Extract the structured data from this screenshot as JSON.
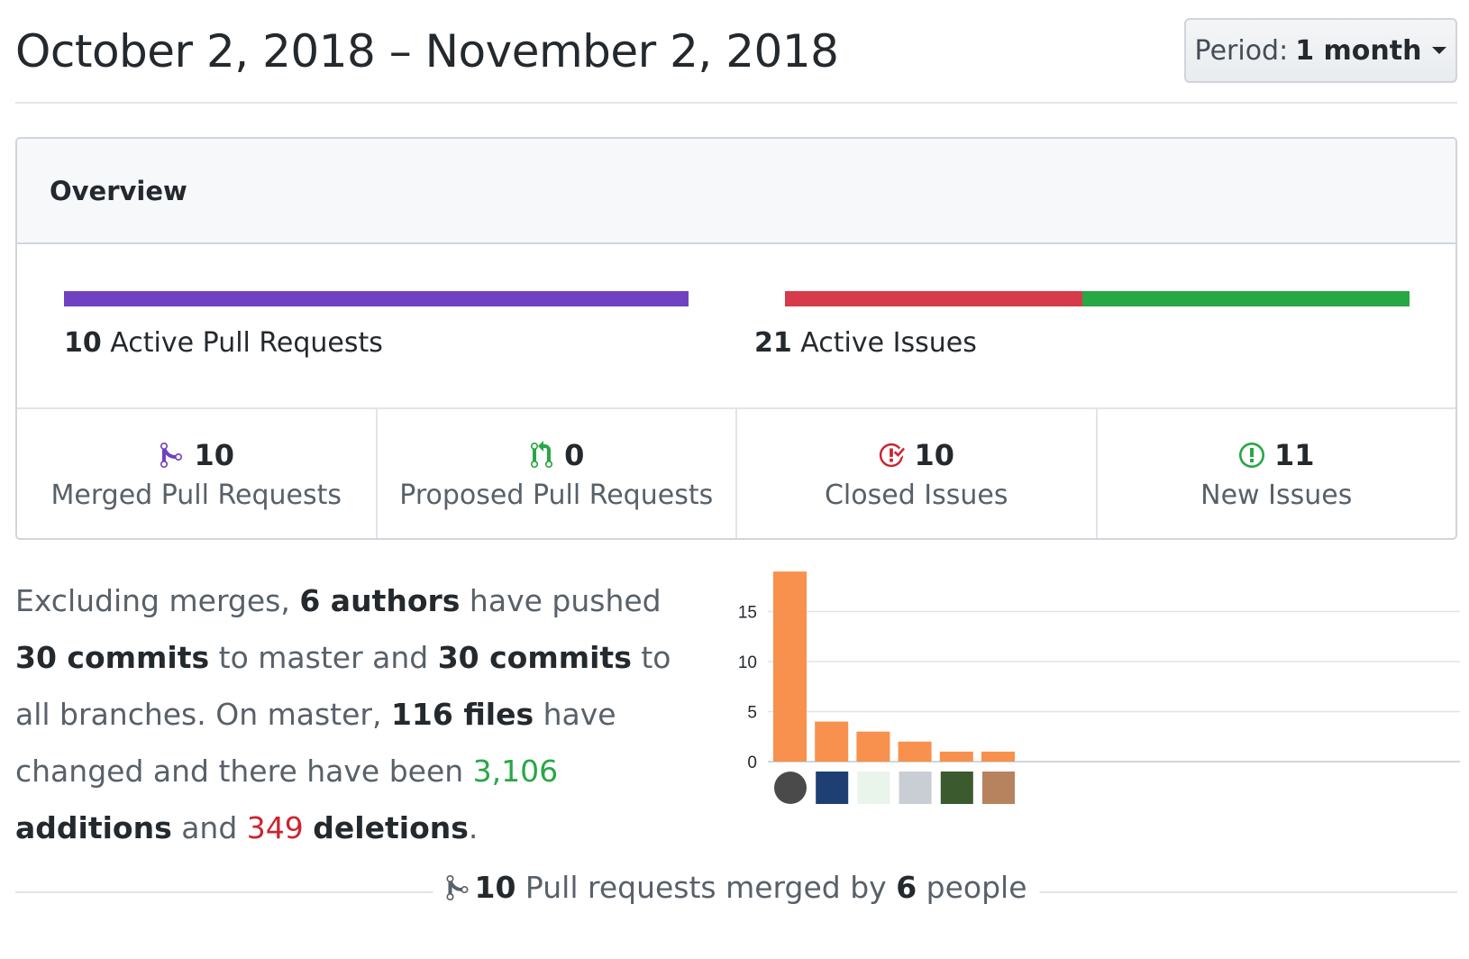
{
  "header": {
    "date_range": "October 2, 2018 – November 2, 2018",
    "period_label": "Period:",
    "period_value": "1 month"
  },
  "overview": {
    "title": "Overview",
    "active_prs": {
      "count": "10",
      "label": "Active Pull Requests",
      "color": "#6f42c1"
    },
    "active_issues": {
      "count": "21",
      "label": "Active Issues",
      "closed_color": "#d73a49",
      "open_color": "#28a745",
      "closed_count": 10,
      "open_count": 11
    },
    "stats": [
      {
        "icon": "git-merge-icon",
        "value": "10",
        "label": "Merged Pull Requests",
        "color": "#6f42c1"
      },
      {
        "icon": "git-pull-request-icon",
        "value": "0",
        "label": "Proposed Pull Requests",
        "color": "#28a745"
      },
      {
        "icon": "issue-closed-icon",
        "value": "10",
        "label": "Closed Issues",
        "color": "#cb2431"
      },
      {
        "icon": "issue-opened-icon",
        "value": "11",
        "label": "New Issues",
        "color": "#28a745"
      }
    ]
  },
  "summary": {
    "p1": "Excluding merges, ",
    "authors": "6 authors",
    "p2": " have pushed ",
    "commits_master": "30 commits",
    "p3": " to master and ",
    "commits_all": "30 commits",
    "p4": " to all branches. On master, ",
    "files": "116 files",
    "p5": " have changed and there have been ",
    "additions_num": "3,106",
    "additions_word": " additions",
    "p6": " and ",
    "deletions_num": "349",
    "deletions_word": "deletions",
    "p7": "."
  },
  "chart_data": {
    "type": "bar",
    "categories": [
      "author-1",
      "author-2",
      "author-3",
      "author-4",
      "author-5",
      "author-6"
    ],
    "values": [
      19,
      4,
      3,
      2,
      1,
      1
    ],
    "ylim": [
      0,
      19
    ],
    "yticks": [
      "0",
      "5",
      "10",
      "15"
    ],
    "bar_color": "#f7914d",
    "grid": true
  },
  "footer": {
    "count": "10",
    "text1": " Pull requests merged by ",
    "people": "6",
    "text2": " people"
  }
}
